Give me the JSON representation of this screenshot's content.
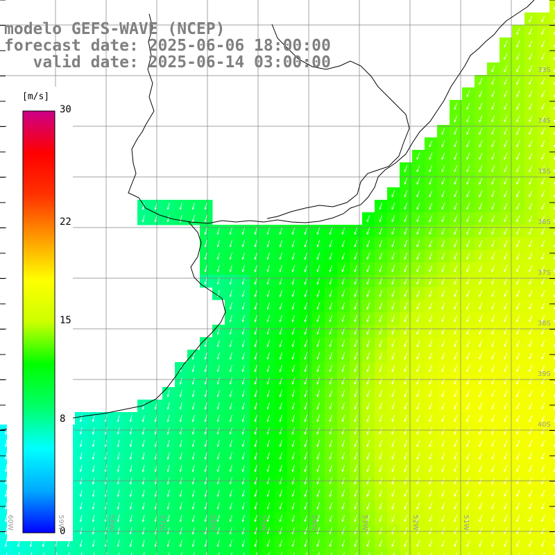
{
  "title": {
    "line1": "modelo GEFS-WAVE (NCEP)",
    "line2": "forecast date: 2025-06-06 18:00:00",
    "line3": "   valid date: 2025-06-14 03:00:00"
  },
  "colorbar": {
    "unit": "[m/s]",
    "min": 0,
    "max": 30,
    "ticks": [
      "30",
      "22",
      "15",
      "8",
      "0"
    ],
    "tick_values": [
      30,
      22,
      15,
      8,
      0
    ],
    "colors": [
      "#0000ff",
      "#00aaff",
      "#00ffff",
      "#00ff66",
      "#00ff00",
      "#ccff00",
      "#ffff00",
      "#ff9900",
      "#ff3300",
      "#ff0000",
      "#cc0088"
    ]
  },
  "latitude_labels": [
    "33S",
    "34S",
    "35S",
    "36S",
    "37S",
    "38S",
    "39S",
    "40S"
  ],
  "longitude_labels": [
    "60W",
    "59W",
    "58W",
    "57W",
    "56W",
    "55W",
    "54W",
    "53W",
    "52W",
    "51W"
  ],
  "field": {
    "variable": "wind speed",
    "flow_direction": "south / south-southwest",
    "weak_wind_zone": "coastal Buenos Aires shelf",
    "strong_wind_zone": "offshore east, around 38S-40S"
  }
}
